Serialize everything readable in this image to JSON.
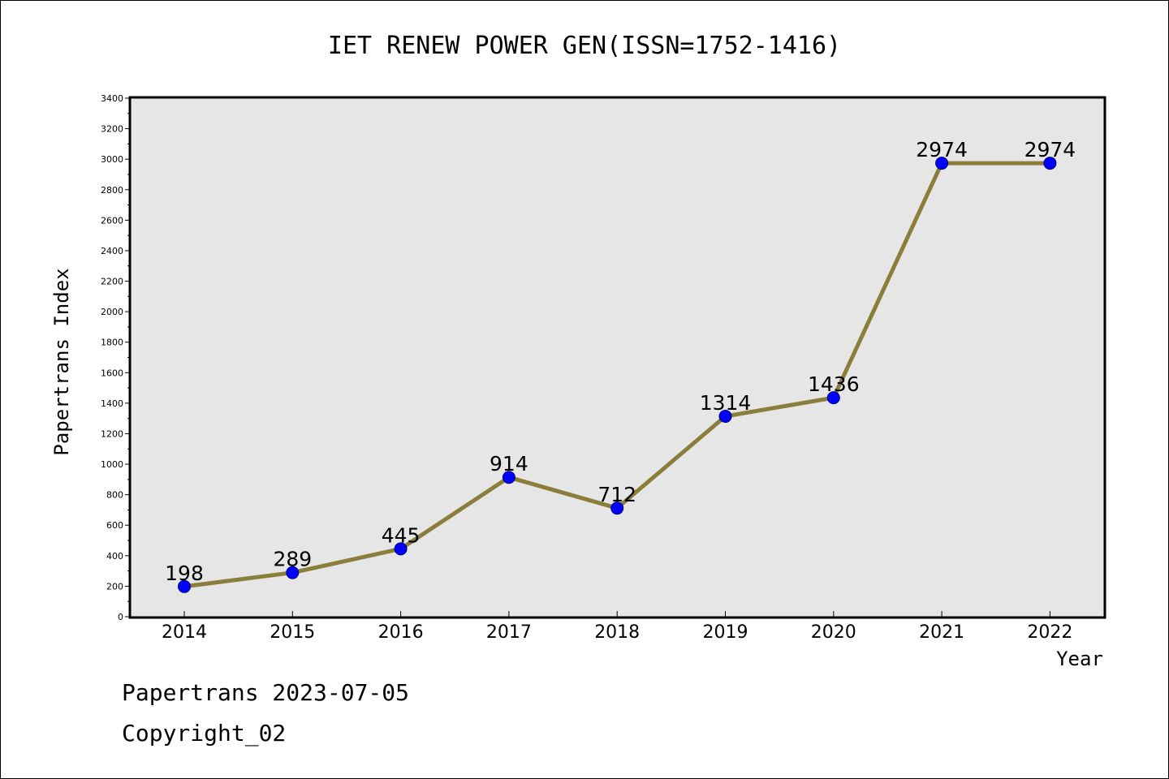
{
  "footer": {
    "line1": "Papertrans 2023-07-05",
    "line2": "Copyright_02"
  },
  "colors": {
    "line": "#8b7d3a",
    "marker": "#0000ff",
    "plot_background": "#e6e6e6",
    "frame": "#000000"
  },
  "chart_data": {
    "type": "line",
    "title": "IET RENEW POWER GEN(ISSN=1752-1416)",
    "xlabel": "Year",
    "ylabel": "Papertrans Index",
    "categories": [
      "2014",
      "2015",
      "2016",
      "2017",
      "2018",
      "2019",
      "2020",
      "2021",
      "2022"
    ],
    "series": [
      {
        "values": [
          198,
          289,
          445,
          914,
          712,
          1314,
          1436,
          2974,
          2974
        ]
      }
    ],
    "ylim": [
      0,
      3400
    ],
    "yticks": [
      0,
      200,
      400,
      600,
      800,
      1000,
      1200,
      1400,
      1600,
      1800,
      2000,
      2200,
      2400,
      2600,
      2800,
      3000,
      3200,
      3400
    ],
    "data_labels": true,
    "grid": false,
    "legend": "none"
  }
}
